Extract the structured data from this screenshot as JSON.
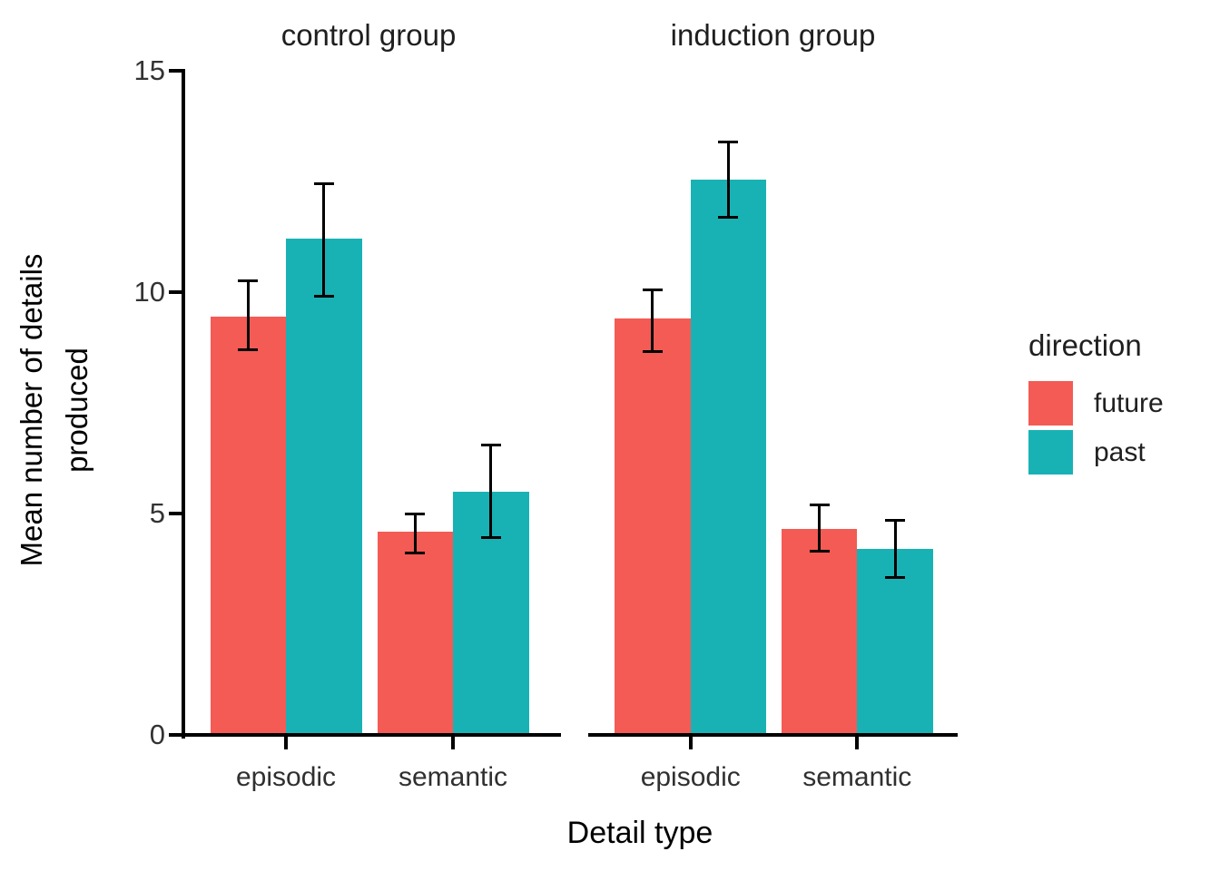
{
  "chart_data": {
    "type": "bar",
    "facets": [
      {
        "label": "control group",
        "categories": [
          "episodic",
          "semantic"
        ],
        "series": [
          {
            "name": "future",
            "values": [
              9.45,
              4.6
            ],
            "err_lo": [
              8.7,
              4.1
            ],
            "err_hi": [
              10.25,
              5.0
            ]
          },
          {
            "name": "past",
            "values": [
              11.2,
              5.5
            ],
            "err_lo": [
              9.9,
              4.45
            ],
            "err_hi": [
              12.45,
              6.55
            ]
          }
        ]
      },
      {
        "label": "induction group",
        "categories": [
          "episodic",
          "semantic"
        ],
        "series": [
          {
            "name": "future",
            "values": [
              9.4,
              4.65
            ],
            "err_lo": [
              8.65,
              4.15
            ],
            "err_hi": [
              10.05,
              5.2
            ]
          },
          {
            "name": "past",
            "values": [
              12.55,
              4.2
            ],
            "err_lo": [
              11.7,
              3.55
            ],
            "err_hi": [
              13.4,
              4.85
            ]
          }
        ]
      }
    ],
    "y_ticks": [
      0,
      5,
      10,
      15
    ],
    "ylim": [
      0,
      15
    ],
    "grid": "off",
    "ylabel_lines": [
      "Mean number of details",
      "produced"
    ],
    "xlabel": "Detail type",
    "legend": {
      "title": "direction",
      "position": "right",
      "items": [
        {
          "label": "future",
          "color": "#f45b55"
        },
        {
          "label": "past",
          "color": "#18b2b5"
        }
      ]
    },
    "colors": {
      "future": "#f45b55",
      "past": "#18b2b5",
      "axis": "#000000",
      "tick_text": "#333333"
    }
  }
}
